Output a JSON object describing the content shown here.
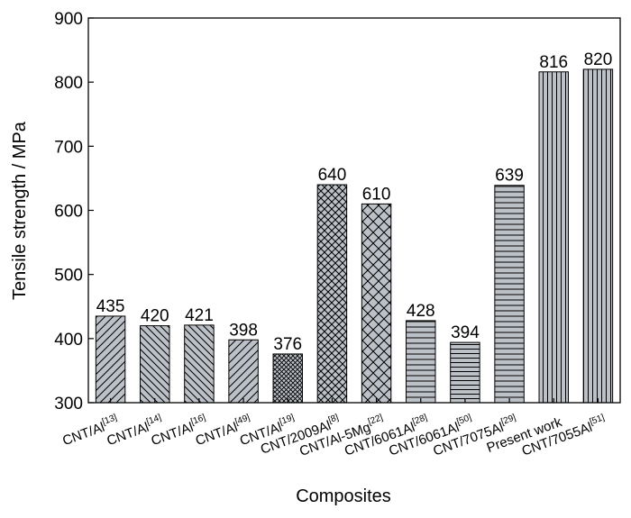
{
  "chart_data": {
    "type": "bar",
    "title": "",
    "xlabel": "Composites",
    "ylabel": "Tensile strength / MPa",
    "ylim": [
      300,
      900
    ],
    "yticks": [
      300,
      400,
      500,
      600,
      700,
      800,
      900
    ],
    "grid": false,
    "categories": [
      {
        "text": "CNT/Al",
        "ref": "[13]",
        "color": "#000000"
      },
      {
        "text": "CNT/Al",
        "ref": "[14]",
        "color": "#000000"
      },
      {
        "text": "CNT/Al",
        "ref": "[16]",
        "color": "#000000"
      },
      {
        "text": "CNT/Al",
        "ref": "[49]",
        "color": "#000000"
      },
      {
        "text": "CNT/Al",
        "ref": "[19]",
        "color": "#000000"
      },
      {
        "text": "CNT/2009Al",
        "ref": "[8]",
        "color": "#000000"
      },
      {
        "text": "CNT/Al-5Mg",
        "ref": "[22]",
        "color": "#000000"
      },
      {
        "text": "CNT/6061Al",
        "ref": "[28]",
        "color": "#000000"
      },
      {
        "text": "CNT/6061Al",
        "ref": "[50]",
        "color": "#000000"
      },
      {
        "text": "CNT/7075Al",
        "ref": "[29]",
        "color": "#000000"
      },
      {
        "text": "Present work",
        "ref": "",
        "color": "#e0442a"
      },
      {
        "text": "CNT/7055Al",
        "ref": "[51]",
        "color": "#000000"
      }
    ],
    "values": [
      435,
      420,
      421,
      398,
      376,
      640,
      610,
      428,
      394,
      639,
      816,
      820
    ],
    "value_labels": [
      "435",
      "420",
      "421",
      "398",
      "376",
      "640",
      "610",
      "428",
      "394",
      "639",
      "816",
      "820"
    ],
    "bar_patterns": [
      "diag-up",
      "diag-down",
      "diag-down",
      "diag-up",
      "crosshatch-fine",
      "crosshatch",
      "crosshatch-open",
      "horizontal",
      "horizontal-dense",
      "horizontal",
      "vertical",
      "vertical"
    ],
    "bar_fill_color": "#bcc1c8",
    "highlight_color": "#e0442a"
  }
}
